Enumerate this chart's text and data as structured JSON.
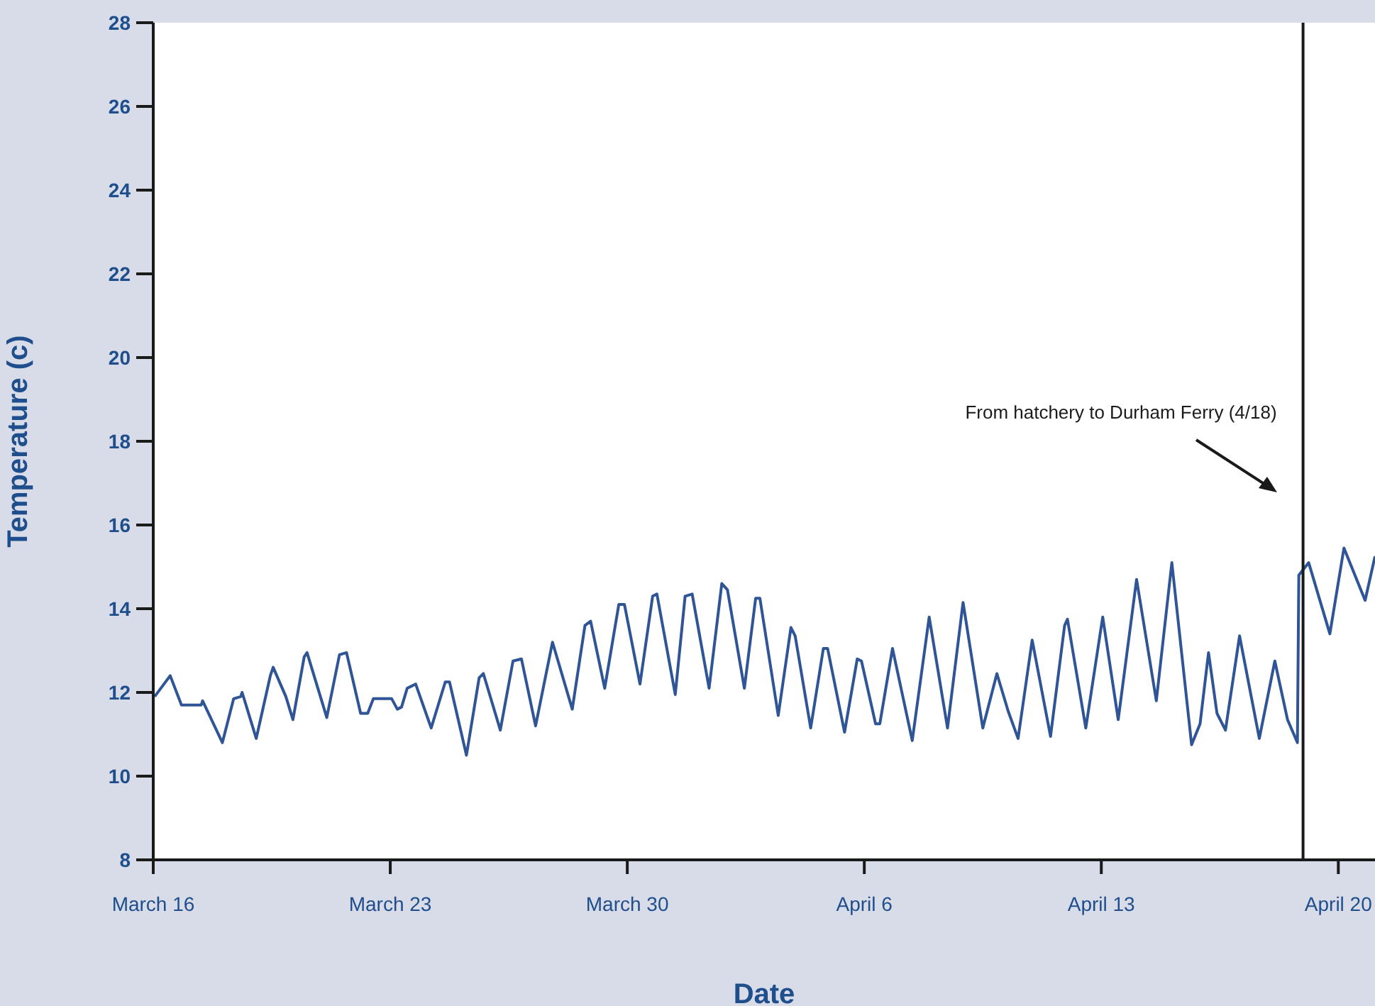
{
  "chart_data": {
    "type": "line",
    "xlabel": "Date",
    "ylabel": "Temperature (c)",
    "annotations": [
      "From hatchery to Durham Ferry (4/18)"
    ],
    "ref_lines": [
      {
        "axis": "x",
        "value": "--04-18T23:00",
        "color": "#1a1a1a"
      }
    ],
    "xlim": [
      "--03-16",
      "--04-21T02:00"
    ],
    "ylim": [
      8,
      28
    ],
    "xticks": [
      {
        "value": "--03-16",
        "label": "March 16"
      },
      {
        "value": "--03-23",
        "label": "March 23"
      },
      {
        "value": "--03-30",
        "label": "March 30"
      },
      {
        "value": "--04-06",
        "label": "April 6"
      },
      {
        "value": "--04-13",
        "label": "April 13"
      },
      {
        "value": "--04-20",
        "label": "April 20"
      }
    ],
    "yticks": [
      8,
      10,
      12,
      14,
      16,
      18,
      20,
      22,
      24,
      26,
      28
    ],
    "grid": false,
    "marker": "none",
    "line_style": "solid",
    "series": [
      {
        "color": "#2f5597",
        "x": [
          "--03-16T01:00",
          "--03-16T12:00",
          "--03-16T20:00",
          "--03-17T10:00",
          "--03-17T11:00",
          "--03-18T01:00",
          "--03-18T09:00",
          "--03-18T14:00",
          "--03-18T15:00",
          "--03-19T01:00",
          "--03-19T11:00",
          "--03-19T13:00",
          "--03-19T22:00",
          "--03-20T03:00",
          "--03-20T11:00",
          "--03-20T13:00",
          "--03-21T03:00",
          "--03-21T12:00",
          "--03-21T17:00",
          "--03-22T03:00",
          "--03-22T08:00",
          "--03-22T12:00",
          "--03-23T01:00",
          "--03-23T05:00",
          "--03-23T08:00",
          "--03-23T12:00",
          "--03-23T18:00",
          "--03-24T05:00",
          "--03-24T15:00",
          "--03-24T18:00",
          "--03-25T06:00",
          "--03-25T15:00",
          "--03-25T18:00",
          "--03-26T06:00",
          "--03-26T15:00",
          "--03-26T21:00",
          "--03-27T07:00",
          "--03-27T19:00",
          "--03-28T09:00",
          "--03-28T18:00",
          "--03-28T22:00",
          "--03-29T08:00",
          "--03-29T18:00",
          "--03-29T22:00",
          "--03-30T09:00",
          "--03-30T18:00",
          "--03-30T21:00",
          "--03-31T10:00",
          "--03-31T17:00",
          "--03-31T22:00",
          "--04-01T10:00",
          "--04-01T19:00",
          "--04-01T23:00",
          "--04-02T11:00",
          "--04-02T19:00",
          "--04-02T22:00",
          "--04-03T11:00",
          "--04-03T20:00",
          "--04-03T23:00",
          "--04-04T10:00",
          "--04-04T19:00",
          "--04-04T22:00",
          "--04-05T10:00",
          "--04-05T19:00",
          "--04-05T22:00",
          "--04-06T08:00",
          "--04-06T11:00",
          "--04-06T20:00",
          "--04-07T10:00",
          "--04-07T22:00",
          "--04-08T11:00",
          "--04-08T22:00",
          "--04-09T12:00",
          "--04-09T22:00",
          "--04-10T06:00",
          "--04-10T13:00",
          "--04-10T23:00",
          "--04-11T12:00",
          "--04-11T22:00",
          "--04-12T00:00",
          "--04-12T13:00",
          "--04-13T01:00",
          "--04-13T12:00",
          "--04-14T01:00",
          "--04-14T15:00",
          "--04-15T02:00",
          "--04-15T16:00",
          "--04-15T22:00",
          "--04-16T04:00",
          "--04-16T10:00",
          "--04-16T16:00",
          "--04-17T02:00",
          "--04-17T16:00",
          "--04-18T03:00",
          "--04-18T12:00",
          "--04-18T19:00",
          "--04-18T20:00",
          "--04-19T03:00",
          "--04-19T18:00",
          "--04-20T04:00",
          "--04-20T19:00",
          "--04-21T02:00"
        ],
        "values": [
          11.9,
          12.4,
          11.7,
          11.7,
          11.8,
          10.8,
          11.85,
          11.9,
          12.0,
          10.9,
          12.4,
          12.6,
          11.9,
          11.35,
          12.85,
          12.95,
          11.4,
          12.9,
          12.95,
          11.5,
          11.5,
          11.85,
          11.85,
          11.6,
          11.65,
          12.1,
          12.2,
          11.15,
          12.25,
          12.25,
          10.5,
          12.35,
          12.45,
          11.1,
          12.75,
          12.8,
          11.2,
          13.2,
          11.6,
          13.6,
          13.7,
          12.1,
          14.1,
          14.1,
          12.2,
          14.3,
          14.35,
          11.95,
          14.3,
          14.35,
          12.1,
          14.6,
          14.45,
          12.1,
          14.25,
          14.25,
          11.45,
          13.55,
          13.35,
          11.15,
          13.05,
          13.05,
          11.05,
          12.8,
          12.75,
          11.25,
          11.25,
          13.05,
          10.85,
          13.8,
          11.15,
          14.15,
          11.15,
          12.45,
          11.55,
          10.9,
          13.25,
          10.95,
          13.6,
          13.75,
          11.15,
          13.8,
          11.35,
          14.7,
          11.8,
          15.1,
          10.75,
          11.25,
          12.95,
          11.5,
          11.1,
          13.35,
          10.9,
          12.75,
          11.35,
          10.8,
          14.8,
          15.1,
          13.4,
          15.45,
          14.2,
          15.25
        ]
      }
    ]
  }
}
